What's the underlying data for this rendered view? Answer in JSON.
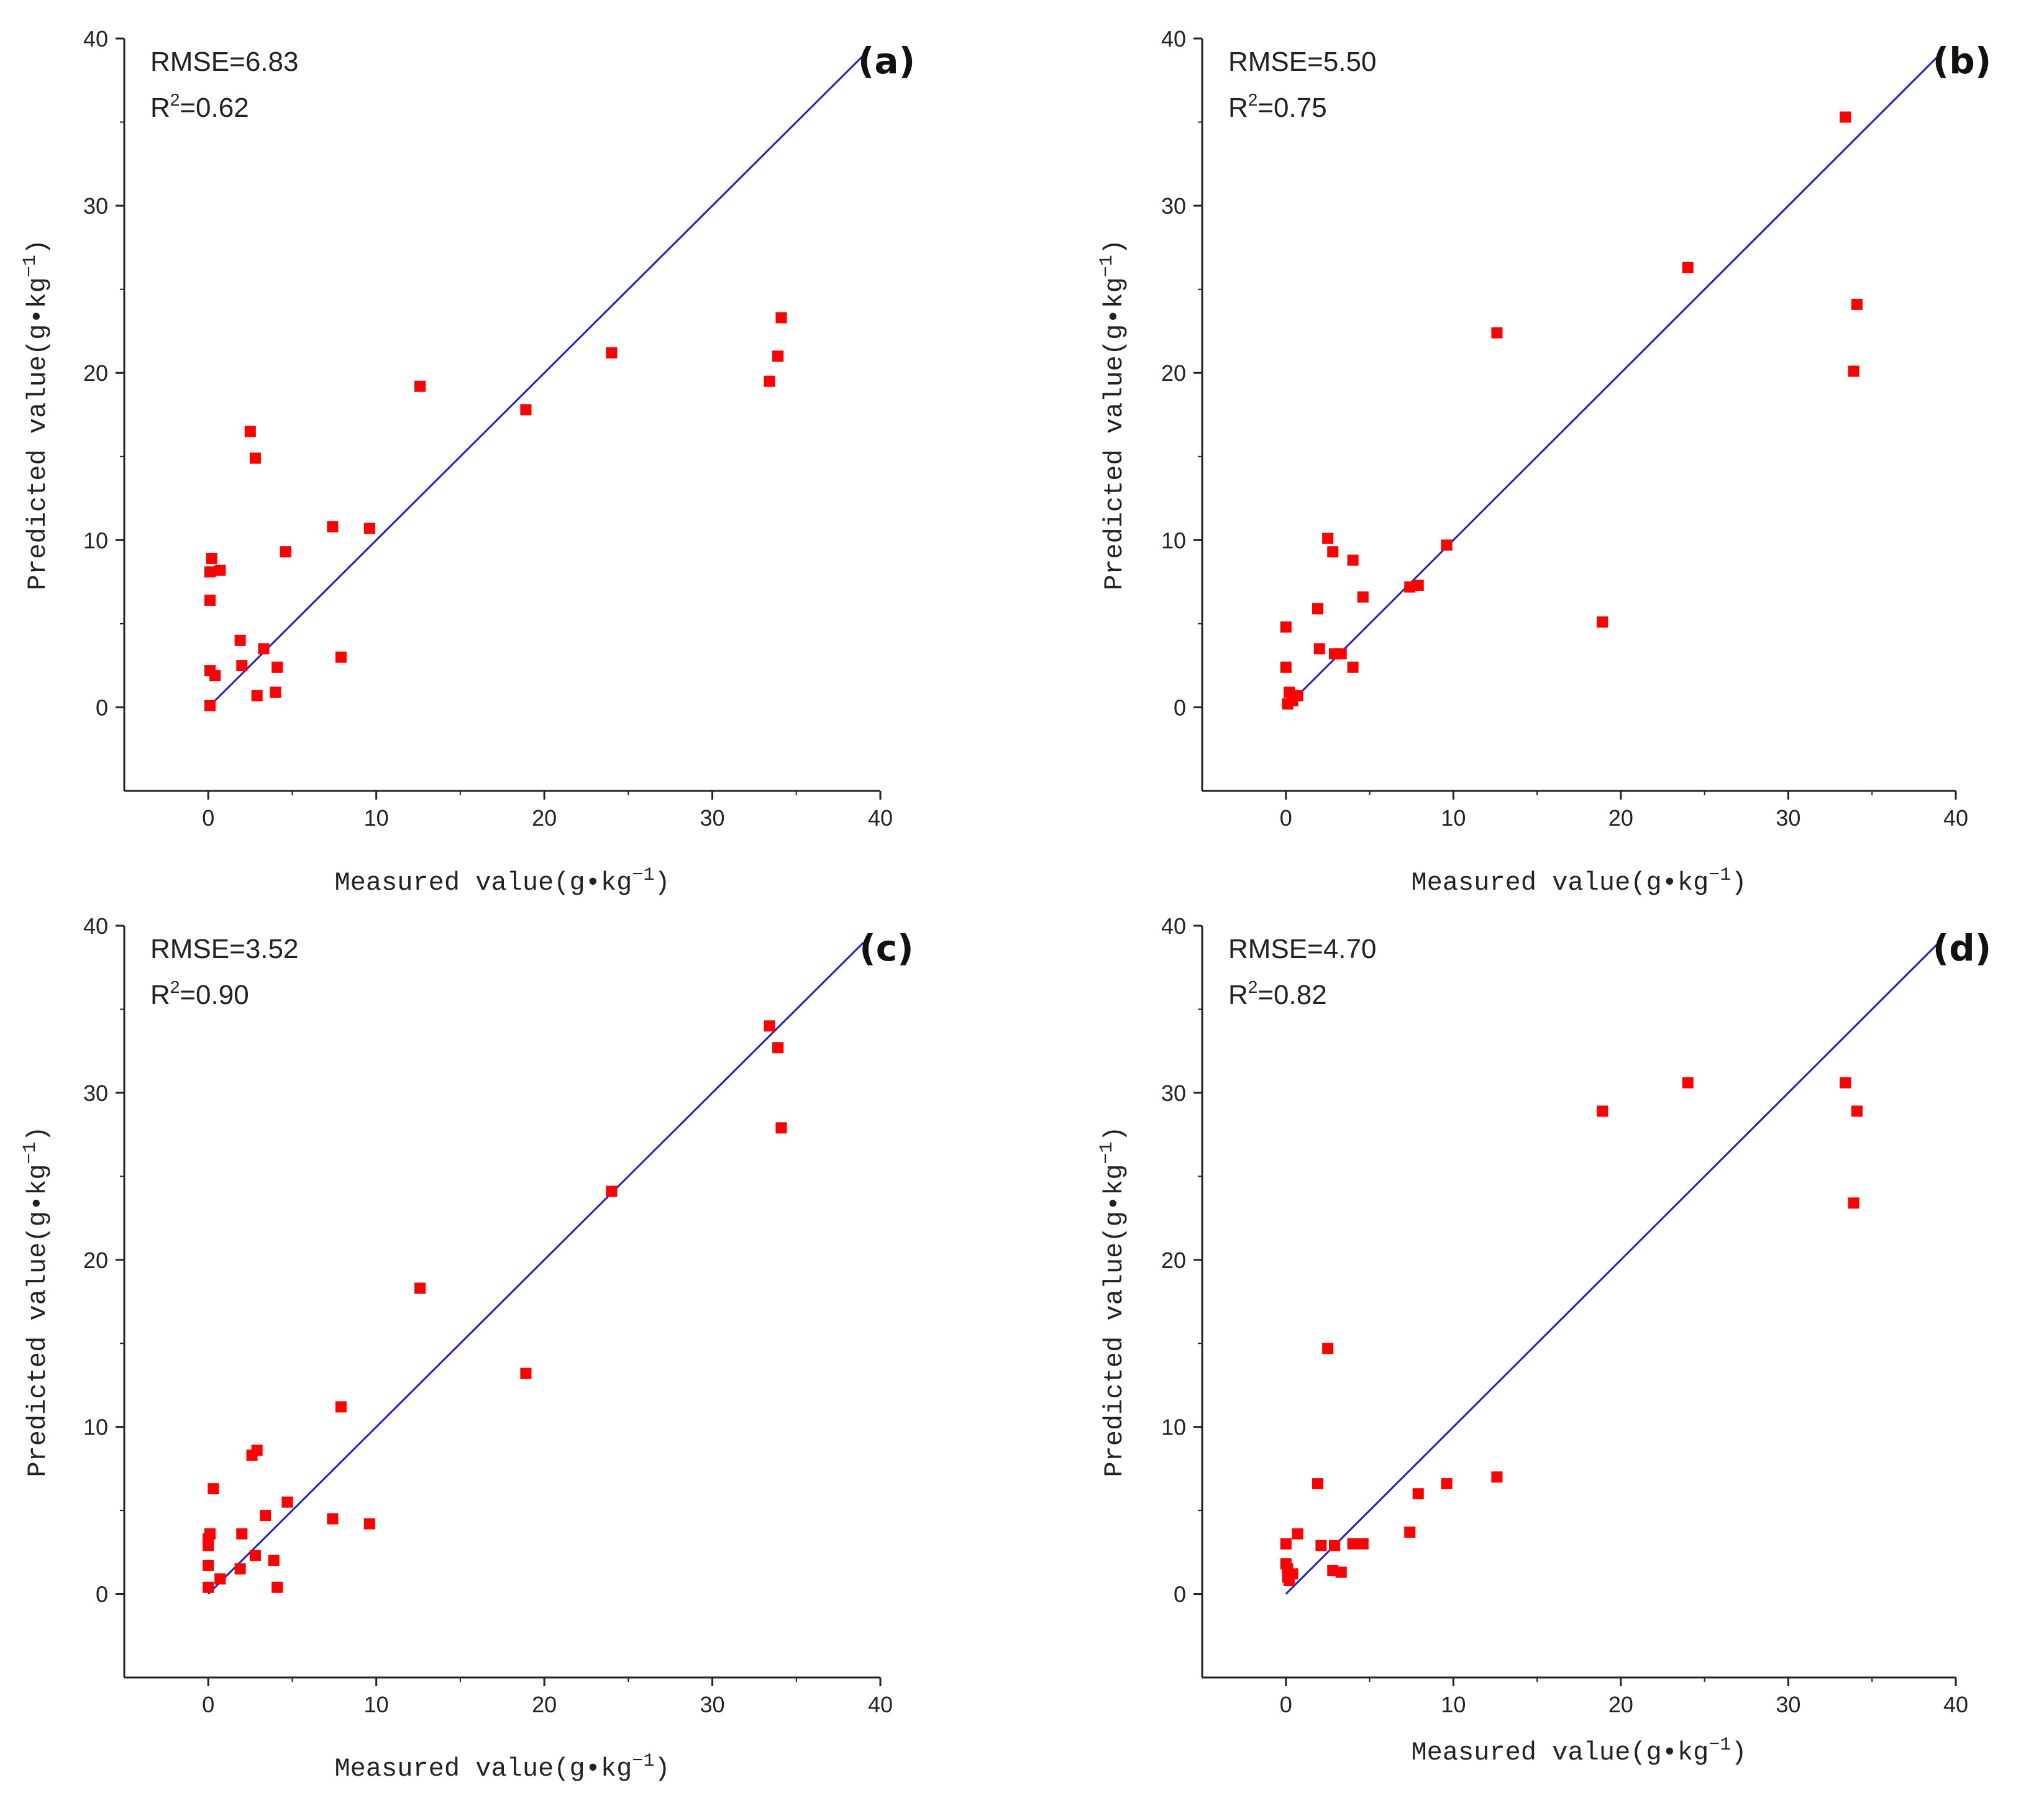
{
  "chart_data": [
    {
      "type": "scatter",
      "panel_label": "(a)",
      "annotations": {
        "rmse": "RMSE=6.83",
        "r2_prefix": "R",
        "r2_sup": "2",
        "r2_value": "=0.62"
      },
      "xlabel": {
        "text": "Measured value(g•kg",
        "sup": "−1",
        "close": ")"
      },
      "ylabel": {
        "text": "Predicted value(g•kg",
        "sup": "−1",
        "close": ")"
      },
      "xlim": [
        -5,
        40
      ],
      "ylim": [
        -5,
        40
      ],
      "xticks": [
        0,
        10,
        20,
        30,
        40
      ],
      "yticks": [
        0,
        10,
        20,
        30,
        40
      ],
      "line": {
        "x": [
          0,
          39
        ],
        "y": [
          0,
          39
        ],
        "color": "#2020c8"
      },
      "marker_color": "#ff0000",
      "points": [
        [
          0.1,
          0.1
        ],
        [
          0.1,
          2.2
        ],
        [
          0.1,
          6.4
        ],
        [
          0.1,
          8.1
        ],
        [
          0.2,
          8.9
        ],
        [
          0.4,
          1.9
        ],
        [
          0.7,
          8.2
        ],
        [
          1.9,
          4.0
        ],
        [
          2.0,
          2.5
        ],
        [
          2.5,
          16.5
        ],
        [
          2.8,
          14.9
        ],
        [
          2.9,
          0.7
        ],
        [
          3.3,
          3.5
        ],
        [
          4.0,
          0.9
        ],
        [
          4.1,
          2.4
        ],
        [
          4.6,
          9.3
        ],
        [
          7.4,
          10.8
        ],
        [
          7.9,
          3.0
        ],
        [
          9.6,
          10.7
        ],
        [
          12.6,
          19.2
        ],
        [
          18.9,
          17.8
        ],
        [
          24.0,
          21.2
        ],
        [
          33.4,
          19.5
        ],
        [
          33.9,
          21.0
        ],
        [
          34.1,
          23.3
        ]
      ]
    },
    {
      "type": "scatter",
      "panel_label": "(b)",
      "annotations": {
        "rmse": "RMSE=5.50",
        "r2_prefix": "R",
        "r2_sup": "2",
        "r2_value": "=0.75"
      },
      "xlabel": {
        "text": "Measured value(g•kg",
        "sup": "−1",
        "close": ")"
      },
      "ylabel": {
        "text": "Predicted value(g•kg",
        "sup": "−1",
        "close": ")"
      },
      "xlim": [
        -5,
        40
      ],
      "ylim": [
        -5,
        40
      ],
      "xticks": [
        0,
        10,
        20,
        30,
        40
      ],
      "yticks": [
        0,
        10,
        20,
        30,
        40
      ],
      "line": {
        "x": [
          0,
          39
        ],
        "y": [
          0,
          39
        ],
        "color": "#2020c8"
      },
      "marker_color": "#ff0000",
      "points": [
        [
          0.0,
          4.8
        ],
        [
          0.0,
          2.4
        ],
        [
          0.1,
          0.2
        ],
        [
          0.2,
          0.9
        ],
        [
          0.4,
          0.4
        ],
        [
          0.7,
          0.7
        ],
        [
          1.9,
          5.9
        ],
        [
          2.0,
          3.5
        ],
        [
          2.5,
          10.1
        ],
        [
          2.8,
          9.3
        ],
        [
          2.9,
          3.2
        ],
        [
          3.3,
          3.2
        ],
        [
          4.0,
          8.8
        ],
        [
          4.0,
          2.4
        ],
        [
          4.6,
          6.6
        ],
        [
          7.4,
          7.2
        ],
        [
          7.9,
          7.3
        ],
        [
          9.6,
          9.7
        ],
        [
          12.6,
          22.4
        ],
        [
          18.9,
          5.1
        ],
        [
          24.0,
          26.3
        ],
        [
          33.4,
          35.3
        ],
        [
          33.9,
          20.1
        ],
        [
          34.1,
          24.1
        ]
      ]
    },
    {
      "type": "scatter",
      "panel_label": "(c)",
      "annotations": {
        "rmse": "RMSE=3.52",
        "r2_prefix": "R",
        "r2_sup": "2",
        "r2_value": "=0.90"
      },
      "xlabel": {
        "text": "Measured value(g•kg",
        "sup": "−1",
        "close": ")"
      },
      "ylabel": {
        "text": "Predicted value(g•kg",
        "sup": "−1",
        "close": ")"
      },
      "xlim": [
        -5,
        40
      ],
      "ylim": [
        -5,
        40
      ],
      "xticks": [
        0,
        10,
        20,
        30,
        40
      ],
      "yticks": [
        0,
        10,
        20,
        30,
        40
      ],
      "line": {
        "x": [
          0,
          39
        ],
        "y": [
          0,
          39
        ],
        "color": "#2020c8"
      },
      "marker_color": "#ff0000",
      "points": [
        [
          0.0,
          0.4
        ],
        [
          0.0,
          1.7
        ],
        [
          0.0,
          2.9
        ],
        [
          0.0,
          3.3
        ],
        [
          0.1,
          3.6
        ],
        [
          0.3,
          6.3
        ],
        [
          0.7,
          0.9
        ],
        [
          1.9,
          1.5
        ],
        [
          2.0,
          3.6
        ],
        [
          2.6,
          8.3
        ],
        [
          2.8,
          2.3
        ],
        [
          2.9,
          8.6
        ],
        [
          3.4,
          4.7
        ],
        [
          3.9,
          2.0
        ],
        [
          4.1,
          0.4
        ],
        [
          4.7,
          5.5
        ],
        [
          7.4,
          4.5
        ],
        [
          7.9,
          11.2
        ],
        [
          9.6,
          4.2
        ],
        [
          12.6,
          18.3
        ],
        [
          18.9,
          13.2
        ],
        [
          24.0,
          24.1
        ],
        [
          33.4,
          34.0
        ],
        [
          33.9,
          32.7
        ],
        [
          34.1,
          27.9
        ]
      ]
    },
    {
      "type": "scatter",
      "panel_label": "(d)",
      "annotations": {
        "rmse": "RMSE=4.70",
        "r2_prefix": "R",
        "r2_sup": "2",
        "r2_value": "=0.82"
      },
      "xlabel": {
        "text": "Measured value(g•kg",
        "sup": "−1",
        "close": ")"
      },
      "ylabel": {
        "text": "Predicted value(g•kg",
        "sup": "−1",
        "close": ")"
      },
      "xlim": [
        -5,
        40
      ],
      "ylim": [
        -5,
        40
      ],
      "xticks": [
        0,
        10,
        20,
        30,
        40
      ],
      "yticks": [
        0,
        10,
        20,
        30,
        40
      ],
      "line": {
        "x": [
          0,
          39
        ],
        "y": [
          0,
          39
        ],
        "color": "#2020c8"
      },
      "marker_color": "#ff0000",
      "points": [
        [
          0.0,
          3.0
        ],
        [
          0.0,
          1.8
        ],
        [
          0.1,
          1.5
        ],
        [
          0.1,
          1.0
        ],
        [
          0.2,
          0.8
        ],
        [
          0.4,
          1.2
        ],
        [
          0.7,
          3.6
        ],
        [
          1.9,
          6.6
        ],
        [
          2.1,
          2.9
        ],
        [
          2.5,
          14.7
        ],
        [
          2.8,
          1.4
        ],
        [
          2.9,
          2.9
        ],
        [
          3.3,
          1.3
        ],
        [
          4.0,
          3.0
        ],
        [
          4.6,
          3.0
        ],
        [
          7.4,
          3.7
        ],
        [
          7.9,
          6.0
        ],
        [
          9.6,
          6.6
        ],
        [
          12.6,
          7.0
        ],
        [
          18.9,
          28.9
        ],
        [
          24.0,
          30.6
        ],
        [
          33.4,
          30.6
        ],
        [
          33.9,
          23.4
        ],
        [
          34.1,
          28.9
        ]
      ]
    }
  ]
}
